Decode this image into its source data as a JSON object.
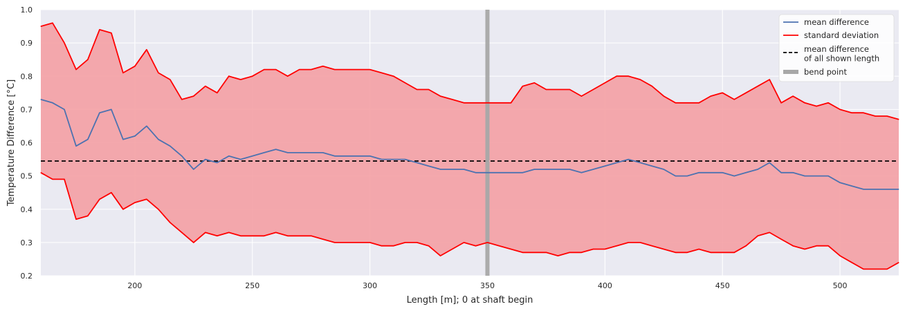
{
  "chart_data": {
    "type": "line",
    "title": "",
    "xlabel": "Length [m]; 0 at shaft begin",
    "ylabel": "Temperature Difference [°C]",
    "xlim": [
      160,
      525
    ],
    "ylim": [
      0.2,
      1.0
    ],
    "x_ticks": [
      200,
      250,
      300,
      350,
      400,
      450,
      500
    ],
    "y_ticks": [
      0.2,
      0.3,
      0.4,
      0.5,
      0.6,
      0.7,
      0.8,
      0.9,
      1.0
    ],
    "x_tick_labels": [
      "200",
      "250",
      "300",
      "350",
      "400",
      "450",
      "500"
    ],
    "y_tick_labels": [
      "0.2",
      "0.3",
      "0.4",
      "0.5",
      "0.6",
      "0.7",
      "0.8",
      "0.9",
      "1.0"
    ],
    "grid": true,
    "legend_position": "top-right",
    "colors": {
      "mean": "#4c72b0",
      "std": "#ff0000",
      "fill": "#f4a0a4",
      "overall": "#000000",
      "bend": "#a8a8a8",
      "background": "#eaeaf2"
    },
    "x": [
      160,
      165,
      170,
      175,
      180,
      185,
      190,
      195,
      200,
      205,
      210,
      215,
      220,
      225,
      230,
      235,
      240,
      245,
      250,
      255,
      260,
      265,
      270,
      275,
      280,
      285,
      290,
      295,
      300,
      305,
      310,
      315,
      320,
      325,
      330,
      335,
      340,
      345,
      350,
      355,
      360,
      365,
      370,
      375,
      380,
      385,
      390,
      395,
      400,
      405,
      410,
      415,
      420,
      425,
      430,
      435,
      440,
      445,
      450,
      455,
      460,
      465,
      470,
      475,
      480,
      485,
      490,
      495,
      500,
      505,
      510,
      515,
      520,
      525
    ],
    "series": [
      {
        "name": "mean difference",
        "role": "mean",
        "values": [
          0.73,
          0.72,
          0.7,
          0.59,
          0.61,
          0.69,
          0.7,
          0.61,
          0.62,
          0.65,
          0.61,
          0.59,
          0.56,
          0.52,
          0.55,
          0.54,
          0.56,
          0.55,
          0.56,
          0.57,
          0.58,
          0.57,
          0.57,
          0.57,
          0.57,
          0.56,
          0.56,
          0.56,
          0.56,
          0.55,
          0.55,
          0.55,
          0.54,
          0.53,
          0.52,
          0.52,
          0.52,
          0.51,
          0.51,
          0.51,
          0.51,
          0.51,
          0.52,
          0.52,
          0.52,
          0.52,
          0.51,
          0.52,
          0.53,
          0.54,
          0.55,
          0.54,
          0.53,
          0.52,
          0.5,
          0.5,
          0.51,
          0.51,
          0.51,
          0.5,
          0.51,
          0.52,
          0.54,
          0.51,
          0.51,
          0.5,
          0.5,
          0.5,
          0.48,
          0.47,
          0.46,
          0.46,
          0.46,
          0.46
        ]
      },
      {
        "name": "standard deviation",
        "role": "upper",
        "values": [
          0.95,
          0.96,
          0.9,
          0.82,
          0.85,
          0.94,
          0.93,
          0.81,
          0.83,
          0.88,
          0.81,
          0.79,
          0.73,
          0.74,
          0.77,
          0.75,
          0.8,
          0.79,
          0.8,
          0.82,
          0.82,
          0.8,
          0.82,
          0.82,
          0.83,
          0.82,
          0.82,
          0.82,
          0.82,
          0.81,
          0.8,
          0.78,
          0.76,
          0.76,
          0.74,
          0.73,
          0.72,
          0.72,
          0.72,
          0.72,
          0.72,
          0.77,
          0.78,
          0.76,
          0.76,
          0.76,
          0.74,
          0.76,
          0.78,
          0.8,
          0.8,
          0.79,
          0.77,
          0.74,
          0.72,
          0.72,
          0.72,
          0.74,
          0.75,
          0.73,
          0.75,
          0.77,
          0.79,
          0.72,
          0.74,
          0.72,
          0.71,
          0.72,
          0.7,
          0.69,
          0.69,
          0.68,
          0.68,
          0.67
        ]
      },
      {
        "name": "standard deviation",
        "role": "lower",
        "values": [
          0.51,
          0.49,
          0.49,
          0.37,
          0.38,
          0.43,
          0.45,
          0.4,
          0.42,
          0.43,
          0.4,
          0.36,
          0.33,
          0.3,
          0.33,
          0.32,
          0.33,
          0.32,
          0.32,
          0.32,
          0.33,
          0.32,
          0.32,
          0.32,
          0.31,
          0.3,
          0.3,
          0.3,
          0.3,
          0.29,
          0.29,
          0.3,
          0.3,
          0.29,
          0.26,
          0.28,
          0.3,
          0.29,
          0.3,
          0.29,
          0.28,
          0.27,
          0.27,
          0.27,
          0.26,
          0.27,
          0.27,
          0.28,
          0.28,
          0.29,
          0.3,
          0.3,
          0.29,
          0.28,
          0.27,
          0.27,
          0.28,
          0.27,
          0.27,
          0.27,
          0.29,
          0.32,
          0.33,
          0.31,
          0.29,
          0.28,
          0.29,
          0.29,
          0.26,
          0.24,
          0.22,
          0.22,
          0.22,
          0.24
        ]
      }
    ],
    "overall_mean": 0.545,
    "bend_point_x": 350,
    "legend": [
      {
        "label": "mean difference",
        "style": "line",
        "color": "#4c72b0"
      },
      {
        "label": "standard deviation",
        "style": "line",
        "color": "#ff0000"
      },
      {
        "label": "mean difference\nof all shown length",
        "style": "dashed",
        "color": "#000000"
      },
      {
        "label": "bend point",
        "style": "thick",
        "color": "#a8a8a8"
      }
    ]
  }
}
